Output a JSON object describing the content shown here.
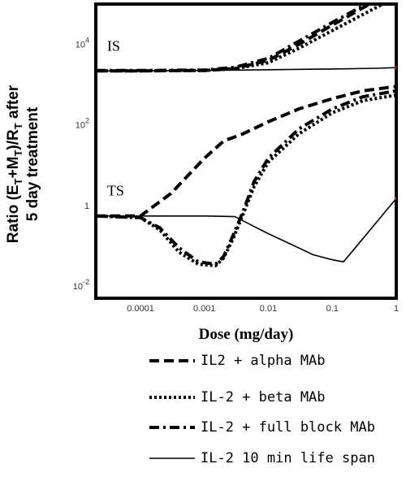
{
  "chart_data": {
    "type": "line",
    "xlabel": "Dose (mg/day)",
    "ylabel_line1": "Ratio (E",
    "ylabel_sub1": "T",
    "ylabel_mid": "+M",
    "ylabel_sub2": "T",
    "ylabel_mid2": ")/R",
    "ylabel_sub3": "T",
    "ylabel_end": " after",
    "ylabel_line2": "5 day treatment",
    "x_scale": "log",
    "y_scale": "log",
    "xlim": [
      2e-05,
      1
    ],
    "ylim": [
      0.005,
      100000
    ],
    "x_ticks": [
      {
        "value": 0.0001,
        "label": "0.0001"
      },
      {
        "value": 0.001,
        "label": "0.001"
      },
      {
        "value": 0.01,
        "label": "0.01"
      },
      {
        "value": 0.1,
        "label": "0.1"
      },
      {
        "value": 1,
        "label": "1"
      }
    ],
    "y_ticks": [
      {
        "value": 0.01,
        "base": "10",
        "exp": "-2"
      },
      {
        "value": 1,
        "base": "1",
        "exp": ""
      },
      {
        "value": 100,
        "base": "10",
        "exp": "2"
      },
      {
        "value": 10000,
        "base": "10",
        "exp": "4"
      }
    ],
    "annotations": [
      {
        "text": "IS",
        "x": 3e-05,
        "y": 7000
      },
      {
        "text": "TS",
        "x": 3e-05,
        "y": 1.8
      }
    ],
    "legend_position": "bottom",
    "series": [
      {
        "name": "IL2 + alpha MAb",
        "style": "dash",
        "group": "IS",
        "x": [
          2e-05,
          0.0001,
          0.001,
          0.003,
          0.01,
          0.03,
          0.1,
          0.3,
          0.6
        ],
        "y": [
          2200,
          2200,
          2250,
          2500,
          4000,
          10000,
          30000,
          80000,
          150000
        ]
      },
      {
        "name": "IL-2 + beta  MAb",
        "style": "dot",
        "group": "IS",
        "x": [
          2e-05,
          0.0001,
          0.001,
          0.003,
          0.01,
          0.03,
          0.1,
          0.3,
          1
        ],
        "y": [
          2200,
          2200,
          2250,
          2500,
          3500,
          8000,
          22000,
          55000,
          150000
        ]
      },
      {
        "name": "IL-2 + full block MAb",
        "style": "dashdot",
        "group": "IS",
        "x": [
          2e-05,
          0.0001,
          0.001,
          0.003,
          0.01,
          0.03,
          0.1,
          0.3,
          0.7
        ],
        "y": [
          2250,
          2250,
          2300,
          2700,
          4500,
          12000,
          35000,
          90000,
          150000
        ]
      },
      {
        "name": "IL-2 10 min life span",
        "style": "solid",
        "group": "IS",
        "x": [
          2e-05,
          0.0001,
          0.001,
          0.01,
          0.1,
          0.5,
          1
        ],
        "y": [
          2200,
          2200,
          2250,
          2350,
          2450,
          2550,
          2650
        ]
      },
      {
        "name": "IL2 + alpha MAb",
        "style": "dash",
        "group": "TS",
        "x": [
          2e-05,
          0.0001,
          0.0003,
          0.001,
          0.002,
          0.004,
          0.01,
          0.03,
          0.1,
          0.3,
          1
        ],
        "y": [
          0.55,
          0.55,
          2,
          15,
          40,
          60,
          120,
          250,
          450,
          700,
          900
        ]
      },
      {
        "name": "IL-2 + beta  MAb",
        "style": "dot",
        "group": "TS",
        "x": [
          2e-05,
          0.0001,
          0.0002,
          0.0004,
          0.0008,
          0.0015,
          0.002,
          0.0028,
          0.004,
          0.006,
          0.01,
          0.03,
          0.1,
          0.3,
          1
        ],
        "y": [
          0.55,
          0.5,
          0.25,
          0.07,
          0.035,
          0.032,
          0.05,
          0.15,
          0.6,
          3,
          12,
          60,
          200,
          400,
          550
        ]
      },
      {
        "name": "IL-2 + full block MAb",
        "style": "dashdot",
        "group": "TS",
        "x": [
          2e-05,
          0.0001,
          0.0002,
          0.0004,
          0.0008,
          0.0015,
          0.002,
          0.0028,
          0.004,
          0.006,
          0.01,
          0.03,
          0.1,
          0.3,
          1
        ],
        "y": [
          0.55,
          0.5,
          0.28,
          0.09,
          0.04,
          0.035,
          0.055,
          0.18,
          0.7,
          4,
          15,
          80,
          250,
          500,
          700
        ]
      },
      {
        "name": "IL-2 10 min life span",
        "style": "solid",
        "group": "TS",
        "x": [
          2e-05,
          0.0001,
          0.001,
          0.003,
          0.006,
          0.01,
          0.02,
          0.05,
          0.1,
          0.15,
          0.3,
          1
        ],
        "y": [
          0.55,
          0.55,
          0.55,
          0.53,
          0.3,
          0.2,
          0.12,
          0.06,
          0.045,
          0.04,
          0.15,
          1.5
        ]
      }
    ],
    "legend": [
      {
        "label": "IL2 + alpha MAb",
        "style": "dash"
      },
      {
        "label": "IL-2 + beta  MAb",
        "style": "dot"
      },
      {
        "label": "IL-2 + full block MAb",
        "style": "dashdot"
      },
      {
        "label": "IL-2 10 min life span",
        "style": "solid"
      }
    ],
    "colors": {
      "line": "#000000",
      "endpoint_marker": "#e8202a"
    }
  }
}
